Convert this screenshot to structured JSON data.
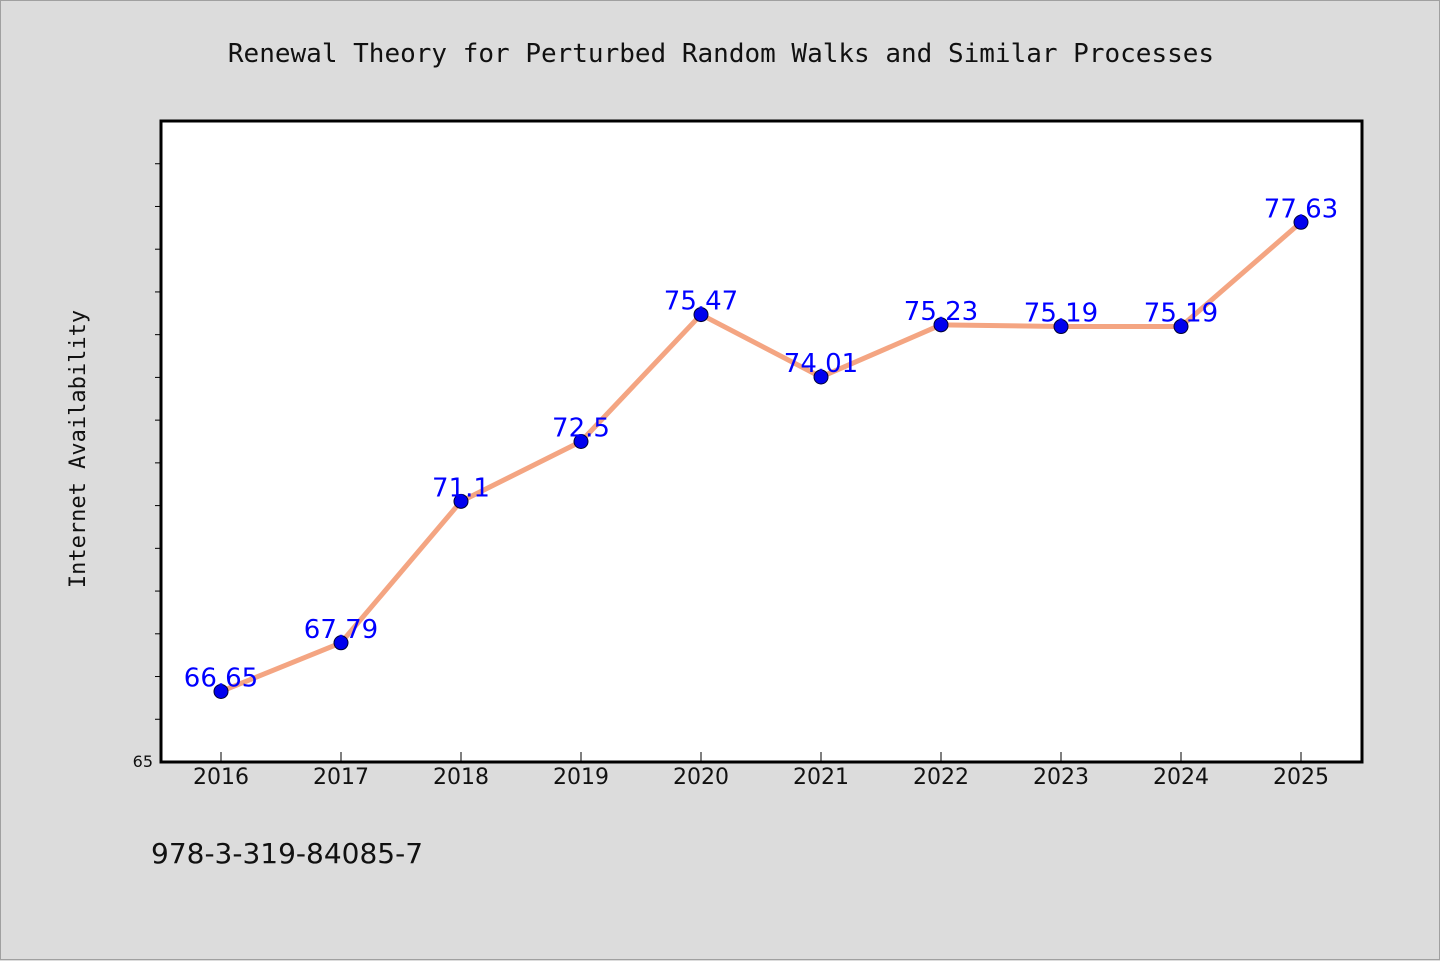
{
  "chart_data": {
    "type": "line",
    "title": "Renewal Theory for Perturbed Random Walks and Similar Processes",
    "ylabel": "Internet Availability",
    "xlabel": "",
    "x": [
      "2016",
      "2017",
      "2018",
      "2019",
      "2020",
      "2021",
      "2022",
      "2023",
      "2024",
      "2025"
    ],
    "series": [
      {
        "values": [
          66.65,
          67.79,
          71.1,
          72.5,
          75.47,
          74.01,
          75.23,
          75.19,
          75.19,
          77.63
        ],
        "labels": [
          "66.65",
          "67.79",
          "71.1",
          "72.5",
          "75.47",
          "74.01",
          "75.23",
          "75.19",
          "75.19",
          "77.63"
        ]
      }
    ],
    "ylim": [
      65,
      80
    ],
    "y_tick_labels": [
      "65"
    ],
    "grid": false,
    "legend": "none"
  },
  "footer": {
    "isbn": "978-3-319-84085-7"
  },
  "colors": {
    "background": "#dcdcdc",
    "plot_background": "#ffffff",
    "line": "#f4a582",
    "marker": "#0000ee",
    "data_label": "#0000ff"
  }
}
